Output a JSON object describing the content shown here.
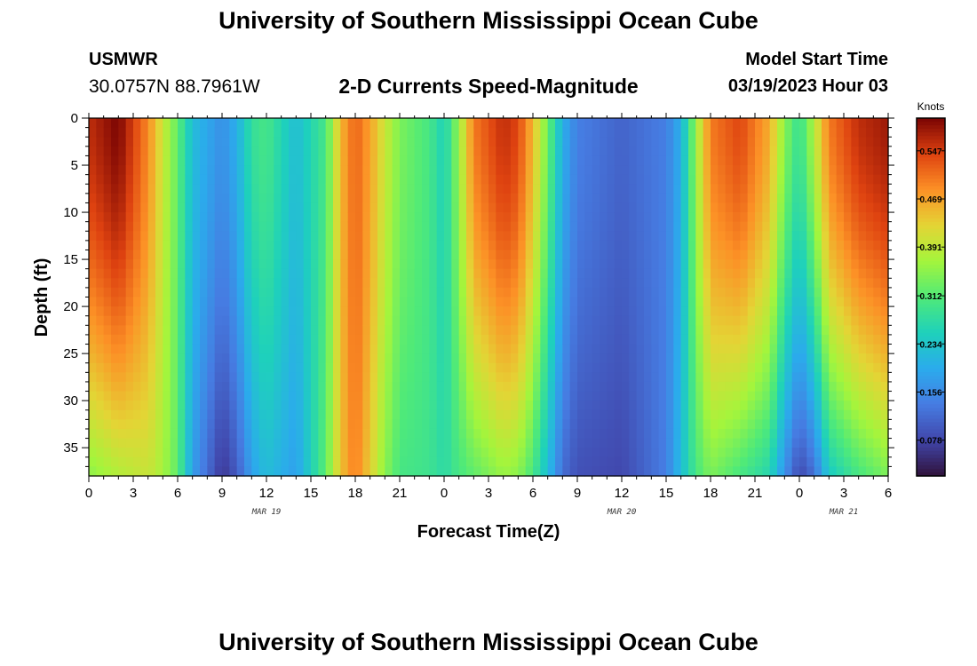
{
  "header": {
    "title": "University of Southern Mississippi Ocean Cube",
    "station": "USMWR",
    "coordinates": "30.0757N  88.7961W",
    "subtitle": "2-D Currents Speed-Magnitude",
    "start_label": "Model Start Time",
    "start_value": "03/19/2023 Hour 03"
  },
  "footer": {
    "title": "University of Southern Mississippi Ocean Cube"
  },
  "chart_data": {
    "type": "heatmap",
    "title": "2-D Currents Speed-Magnitude",
    "xlabel": "Forecast Time(Z)",
    "ylabel": "Depth (ft)",
    "x_ticks": [
      "0",
      "3",
      "6",
      "9",
      "12",
      "15",
      "18",
      "21",
      "0",
      "3",
      "6",
      "9",
      "12",
      "15",
      "18",
      "21",
      "0",
      "3",
      "6"
    ],
    "x_range_hours": [
      0,
      54
    ],
    "date_labels": [
      {
        "text": "MAR 19",
        "hour": 12
      },
      {
        "text": "MAR 20",
        "hour": 36
      },
      {
        "text": "MAR 21",
        "hour": 51
      }
    ],
    "y_ticks": [
      "0",
      "5",
      "10",
      "15",
      "20",
      "25",
      "30",
      "35"
    ],
    "y_range_ft": [
      0,
      38
    ],
    "y_inverted": true,
    "colorbar": {
      "label": "Knots",
      "ticks": [
        "0.547",
        "0.469",
        "0.391",
        "0.312",
        "0.234",
        "0.156",
        "0.078"
      ],
      "range": [
        0.02,
        0.6
      ],
      "colormap": "turbo"
    },
    "speed_profile_knots": [
      {
        "hour": 0,
        "surface": 0.56,
        "bottom": 0.35
      },
      {
        "hour": 2,
        "surface": 0.6,
        "bottom": 0.38
      },
      {
        "hour": 4,
        "surface": 0.49,
        "bottom": 0.4
      },
      {
        "hour": 5,
        "surface": 0.4,
        "bottom": 0.37
      },
      {
        "hour": 6,
        "surface": 0.32,
        "bottom": 0.32
      },
      {
        "hour": 7,
        "surface": 0.22,
        "bottom": 0.18
      },
      {
        "hour": 9,
        "surface": 0.16,
        "bottom": 0.06
      },
      {
        "hour": 10,
        "surface": 0.2,
        "bottom": 0.1
      },
      {
        "hour": 11,
        "surface": 0.28,
        "bottom": 0.18
      },
      {
        "hour": 12,
        "surface": 0.3,
        "bottom": 0.22
      },
      {
        "hour": 14,
        "surface": 0.22,
        "bottom": 0.18
      },
      {
        "hour": 16,
        "surface": 0.3,
        "bottom": 0.32
      },
      {
        "hour": 17,
        "surface": 0.45,
        "bottom": 0.44
      },
      {
        "hour": 18,
        "surface": 0.52,
        "bottom": 0.5
      },
      {
        "hour": 19,
        "surface": 0.47,
        "bottom": 0.43
      },
      {
        "hour": 20,
        "surface": 0.4,
        "bottom": 0.35
      },
      {
        "hour": 21,
        "surface": 0.34,
        "bottom": 0.3
      },
      {
        "hour": 23,
        "surface": 0.3,
        "bottom": 0.29
      },
      {
        "hour": 24,
        "surface": 0.25,
        "bottom": 0.27
      },
      {
        "hour": 25,
        "surface": 0.36,
        "bottom": 0.3
      },
      {
        "hour": 26,
        "surface": 0.5,
        "bottom": 0.32
      },
      {
        "hour": 28,
        "surface": 0.56,
        "bottom": 0.36
      },
      {
        "hour": 29,
        "surface": 0.54,
        "bottom": 0.35
      },
      {
        "hour": 30,
        "surface": 0.45,
        "bottom": 0.3
      },
      {
        "hour": 31,
        "surface": 0.33,
        "bottom": 0.22
      },
      {
        "hour": 32,
        "surface": 0.2,
        "bottom": 0.12
      },
      {
        "hour": 33,
        "surface": 0.14,
        "bottom": 0.09
      },
      {
        "hour": 36,
        "surface": 0.11,
        "bottom": 0.08
      },
      {
        "hour": 39,
        "surface": 0.14,
        "bottom": 0.14
      },
      {
        "hour": 40,
        "surface": 0.2,
        "bottom": 0.22
      },
      {
        "hour": 41,
        "surface": 0.36,
        "bottom": 0.3
      },
      {
        "hour": 42,
        "surface": 0.5,
        "bottom": 0.34
      },
      {
        "hour": 44,
        "surface": 0.54,
        "bottom": 0.3
      },
      {
        "hour": 46,
        "surface": 0.46,
        "bottom": 0.26
      },
      {
        "hour": 47,
        "surface": 0.35,
        "bottom": 0.16
      },
      {
        "hour": 48,
        "surface": 0.28,
        "bottom": 0.08
      },
      {
        "hour": 49,
        "surface": 0.38,
        "bottom": 0.12
      },
      {
        "hour": 50,
        "surface": 0.5,
        "bottom": 0.24
      },
      {
        "hour": 52,
        "surface": 0.56,
        "bottom": 0.3
      },
      {
        "hour": 54,
        "surface": 0.58,
        "bottom": 0.34
      }
    ]
  }
}
